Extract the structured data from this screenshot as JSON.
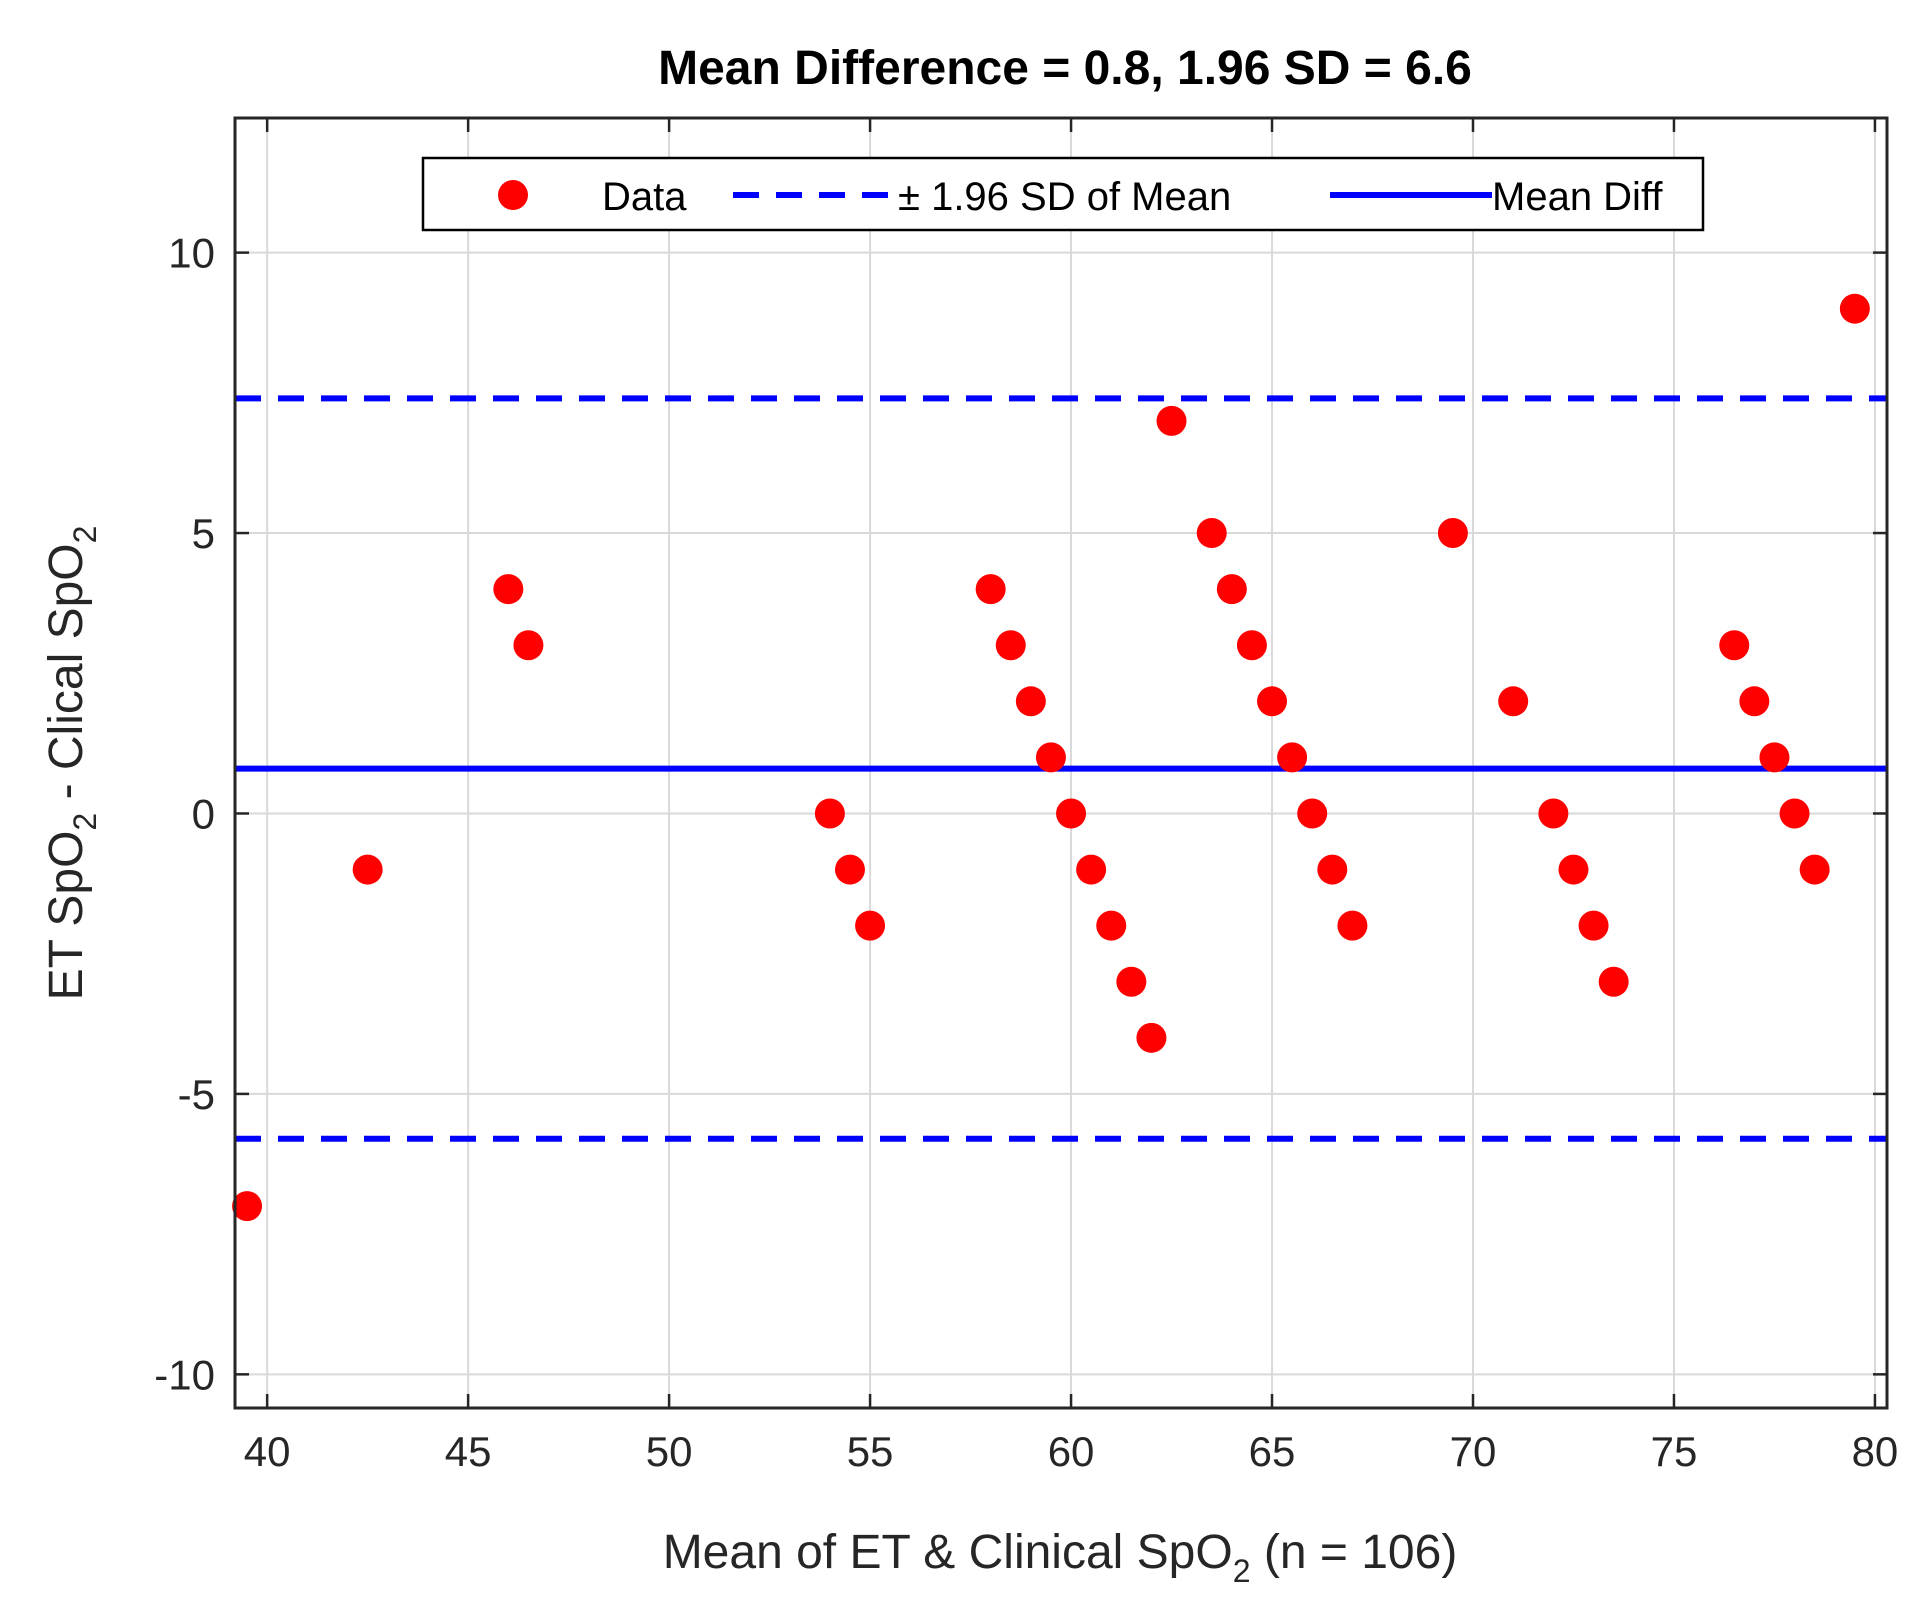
{
  "chart_data": {
    "type": "scatter",
    "title": "Mean Difference = 0.8, 1.96 SD = 6.6",
    "xlabel": {
      "main": "Mean of ET & Clinical SpO",
      "sub": "2",
      "tail": " (n = 106)"
    },
    "ylabel": {
      "pre": "ET SpO",
      "sub1": "2",
      "mid": " - Clical SpO",
      "sub2": "2"
    },
    "xlim": [
      39.2,
      80.3
    ],
    "ylim": [
      -10.6,
      12.4
    ],
    "xticks": [
      40,
      45,
      50,
      55,
      60,
      65,
      70,
      75,
      80
    ],
    "yticks": [
      -10,
      -5,
      0,
      5,
      10
    ],
    "ytick_labels": [
      "-10",
      "-5",
      "0",
      "5",
      "10"
    ],
    "grid": true,
    "legend_position": "top-center",
    "legend": [
      "Data",
      "± 1.96 SD of Mean",
      "Mean Diff"
    ],
    "mean_diff": 0.8,
    "upper_limit": 7.4,
    "lower_limit": -5.8,
    "colors": {
      "points": "#ff0000",
      "lines": "#0000ff",
      "grid": "#d9d9d9",
      "axis": "#262626"
    },
    "points": [
      {
        "x": 39.5,
        "y": -7
      },
      {
        "x": 42.5,
        "y": -1
      },
      {
        "x": 46,
        "y": 4
      },
      {
        "x": 46.5,
        "y": 3
      },
      {
        "x": 54,
        "y": 0
      },
      {
        "x": 54.5,
        "y": -1
      },
      {
        "x": 55,
        "y": -2
      },
      {
        "x": 58,
        "y": 4
      },
      {
        "x": 58.5,
        "y": 3
      },
      {
        "x": 59,
        "y": 2
      },
      {
        "x": 59.5,
        "y": 1
      },
      {
        "x": 60,
        "y": 0
      },
      {
        "x": 60.5,
        "y": -1
      },
      {
        "x": 61,
        "y": -2
      },
      {
        "x": 61.5,
        "y": -3
      },
      {
        "x": 62,
        "y": -4
      },
      {
        "x": 62.5,
        "y": 7
      },
      {
        "x": 63.5,
        "y": 5
      },
      {
        "x": 64,
        "y": 4
      },
      {
        "x": 64.5,
        "y": 3
      },
      {
        "x": 65,
        "y": 2
      },
      {
        "x": 65.5,
        "y": 1
      },
      {
        "x": 66,
        "y": 0
      },
      {
        "x": 66.5,
        "y": -1
      },
      {
        "x": 67,
        "y": -2
      },
      {
        "x": 69.5,
        "y": 5
      },
      {
        "x": 71,
        "y": 2
      },
      {
        "x": 72,
        "y": 0
      },
      {
        "x": 72.5,
        "y": -1
      },
      {
        "x": 73,
        "y": -2
      },
      {
        "x": 73.5,
        "y": -3
      },
      {
        "x": 76.5,
        "y": 3
      },
      {
        "x": 77,
        "y": 2
      },
      {
        "x": 77.5,
        "y": 1
      },
      {
        "x": 78,
        "y": 0
      },
      {
        "x": 78.5,
        "y": -1
      },
      {
        "x": 79.5,
        "y": 9
      }
    ]
  }
}
